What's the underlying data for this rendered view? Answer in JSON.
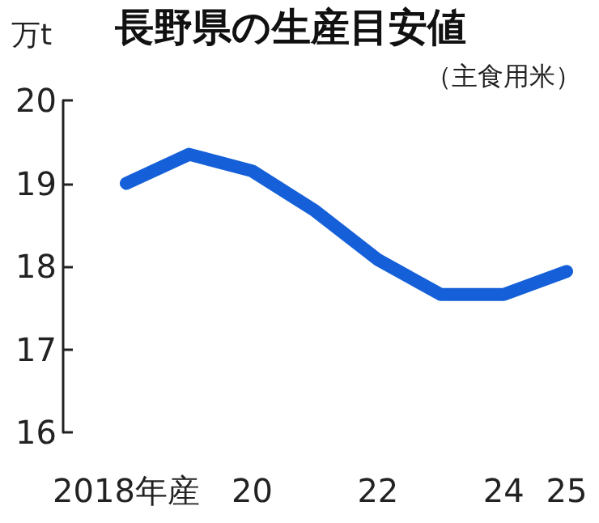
{
  "chart_data": {
    "type": "line",
    "title": "長野県の生産目安値",
    "subtitle": "（主食用米）",
    "ylabel": "万t",
    "categories": [
      "2018年産",
      null,
      "20",
      null,
      "22",
      null,
      "24",
      "25"
    ],
    "series": [
      {
        "color": "#1560d8",
        "values": [
          19.0,
          19.35,
          19.15,
          18.67,
          18.08,
          17.66,
          17.66,
          17.94
        ]
      }
    ],
    "ylim": [
      16,
      20
    ],
    "yticks": [
      16,
      17,
      18,
      19,
      20
    ],
    "grid": false,
    "line_style": "solid"
  }
}
